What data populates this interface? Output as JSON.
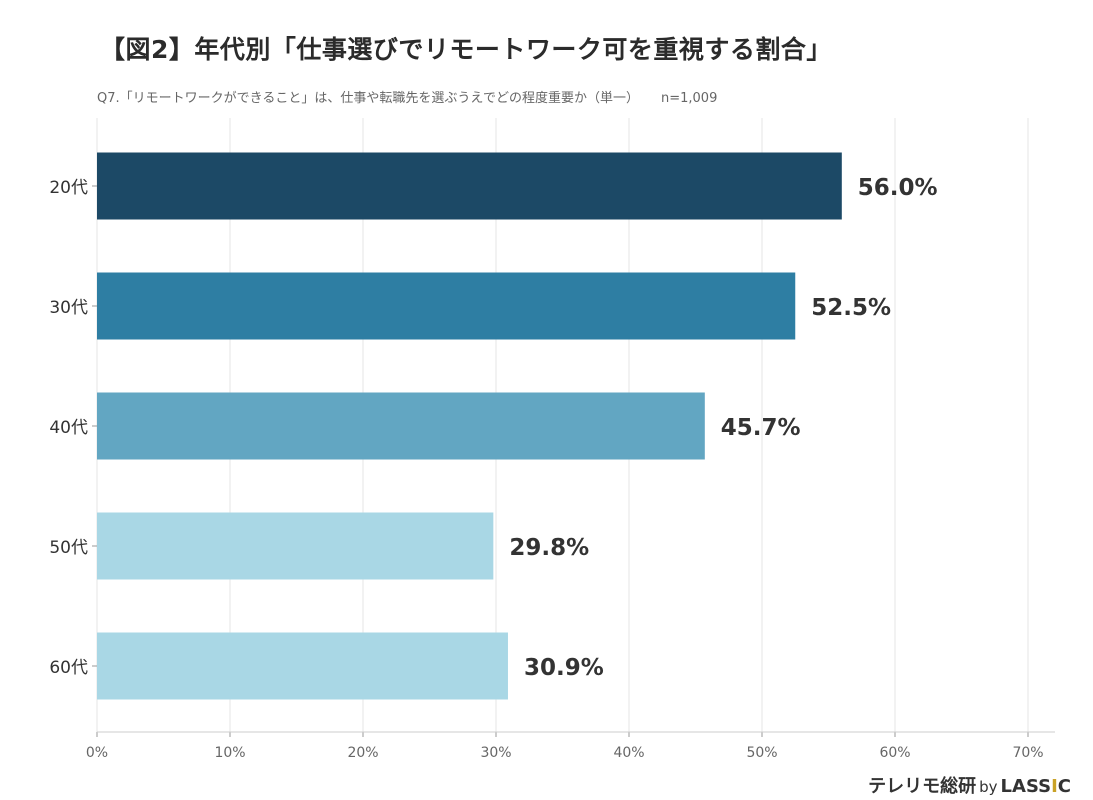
{
  "title": "【図2】年代別「仕事選びでリモートワーク可を重視する割合」",
  "subtitle": "Q7.「リモートワークができること」は、仕事や転職先を選ぶうえでどの程度重要か（単一）",
  "sample_size": "n=1,009",
  "brand": {
    "name": "テレリモ総研",
    "by": "by",
    "company_pre": "LASS",
    "company_accent": "I",
    "company_post": "C",
    "accent_color": "#c9a227"
  },
  "chart_data": {
    "type": "bar",
    "orientation": "horizontal",
    "categories": [
      "20代",
      "30代",
      "40代",
      "50代",
      "60代"
    ],
    "values": [
      56.0,
      52.5,
      45.7,
      29.8,
      30.9
    ],
    "data_labels": [
      "56.0%",
      "52.5%",
      "45.7%",
      "29.8%",
      "30.9%"
    ],
    "colors": [
      "#1c4966",
      "#2e7ea3",
      "#62a6c2",
      "#a9d7e5",
      "#a9d7e5"
    ],
    "xlim": [
      0,
      70
    ],
    "xticks": [
      0,
      10,
      20,
      30,
      40,
      50,
      60,
      70
    ],
    "xtick_labels": [
      "0%",
      "10%",
      "20%",
      "30%",
      "40%",
      "50%",
      "60%",
      "70%"
    ],
    "grid": "vertical"
  }
}
